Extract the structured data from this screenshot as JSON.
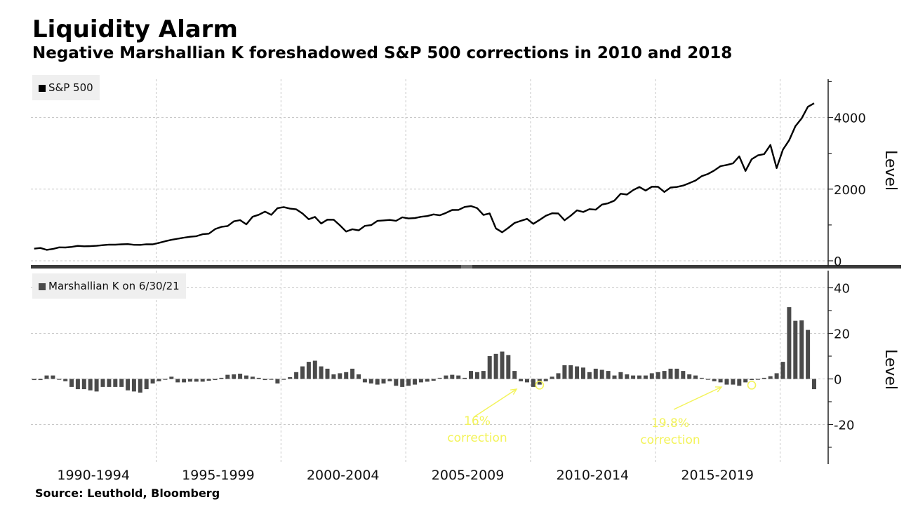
{
  "header": {
    "title": "Liquidity Alarm",
    "subtitle": "Negative Marshallian K foreshadowed S&P 500 corrections in 2010 and 2018"
  },
  "footer": {
    "source": "Source: Leuthold, Bloomberg"
  },
  "colors": {
    "line": "#000000",
    "bars": "#4a4a4a",
    "grid": "#c8c8c8",
    "annotation": "#f3f35a",
    "legend_bg": "#efefef",
    "divider": "#3a3a3a"
  },
  "chart_data": [
    {
      "type": "line",
      "panel": "top",
      "title": "S&P 500",
      "legend": "S&P 500",
      "ylabel": "Level",
      "ylim": [
        -100,
        5000
      ],
      "yticks": [
        0,
        2000,
        4000
      ],
      "ytick_labels": [
        "0",
        "2000",
        "4000"
      ],
      "x_start": "1990 Q1",
      "frequency": "quarterly",
      "grid": true,
      "values": [
        339,
        358,
        306,
        330,
        375,
        371,
        388,
        417,
        404,
        408,
        418,
        436,
        451,
        450,
        459,
        466,
        445,
        444,
        462,
        459,
        501,
        545,
        584,
        616,
        646,
        671,
        687,
        741,
        757,
        885,
        947,
        970,
        1102,
        1134,
        1017,
        1229,
        1286,
        1373,
        1283,
        1469,
        1499,
        1455,
        1436,
        1320,
        1160,
        1224,
        1041,
        1148,
        1147,
        990,
        815,
        880,
        848,
        975,
        996,
        1112,
        1126,
        1141,
        1115,
        1212,
        1181,
        1191,
        1229,
        1248,
        1295,
        1270,
        1336,
        1418,
        1421,
        1503,
        1527,
        1468,
        1280,
        1322,
        903,
        797,
        919,
        1057,
        1115,
        1169,
        1031,
        1141,
        1258,
        1326,
        1321,
        1131,
        1258,
        1408,
        1362,
        1441,
        1426,
        1569,
        1606,
        1681,
        1872,
        1848,
        1972,
        2059,
        1960,
        2068,
        2063,
        1920,
        2044,
        2060,
        2099,
        2168,
        2239,
        2363,
        2423,
        2519,
        2641,
        2674,
        2718,
        2914,
        2507,
        2834,
        2942,
        2977,
        3231,
        2585,
        3100,
        3363,
        3756,
        3973,
        4298,
        4395
      ],
      "x_tick_labels": [
        "1990-1994",
        "1995-1999",
        "2000-2004",
        "2005-2009",
        "2010-2014",
        "2015-2019"
      ]
    },
    {
      "type": "bar",
      "panel": "bottom",
      "title": "Marshallian K",
      "legend": "Marshallian K on 6/30/21",
      "ylabel": "Level",
      "ylim": [
        -37,
        46
      ],
      "yticks": [
        -20,
        0,
        20,
        40
      ],
      "ytick_labels": [
        "-20",
        "0",
        "20",
        "40"
      ],
      "x_start": "1990 Q1",
      "frequency": "quarterly",
      "grid": true,
      "values": [
        -0.5,
        -0.5,
        1.5,
        1.5,
        -0.3,
        -1,
        -3.5,
        -4.5,
        -4.5,
        -5,
        -5.5,
        -3.5,
        -3.5,
        -3.5,
        -3.5,
        -5,
        -5.5,
        -6,
        -4.5,
        -2,
        -1,
        -0.3,
        1,
        -1.5,
        -1.5,
        -1.2,
        -1.2,
        -1.2,
        -0.8,
        -0.5,
        0.5,
        1.8,
        2,
        2.3,
        1.5,
        1,
        0.5,
        -0.5,
        -0.3,
        -2,
        -0.3,
        0.8,
        3,
        5.5,
        7.5,
        8,
        5.5,
        4.5,
        2,
        2.5,
        3,
        4.5,
        2,
        -1.5,
        -2,
        -2.5,
        -2,
        -1,
        -3,
        -3.5,
        -3,
        -2.5,
        -1.5,
        -1.2,
        -0.8,
        0.3,
        1.5,
        1.8,
        1.5,
        0.5,
        3.5,
        3,
        3.5,
        10,
        11,
        12,
        10.5,
        3.5,
        -1,
        -1.5,
        -3.5,
        -2.5,
        -1,
        1,
        2.5,
        6,
        6,
        5.5,
        5,
        3,
        4.5,
        4,
        3.5,
        1.5,
        3,
        2,
        1.5,
        1.5,
        1.5,
        2.5,
        3,
        3.5,
        4.5,
        4.5,
        3.5,
        2,
        1.5,
        0.3,
        -0.3,
        -1,
        -1.5,
        -2.5,
        -2.5,
        -3,
        -1.5,
        -0.5,
        -0.3,
        0.5,
        1.2,
        2.5,
        7.5,
        31.5,
        25.5,
        25.7,
        21.5,
        -4.5
      ],
      "x_tick_labels": [
        "1990-1994",
        "1995-1999",
        "2000-2004",
        "2005-2009",
        "2010-2014",
        "2015-2019"
      ],
      "annotations": [
        {
          "text_line1": "16%",
          "text_line2": "correction",
          "target": "2010 Q2",
          "target_value": -1.5
        },
        {
          "text_line1": "19.8%",
          "text_line2": "correction",
          "target": "2018 Q4",
          "target_value": -1.5
        }
      ]
    }
  ]
}
